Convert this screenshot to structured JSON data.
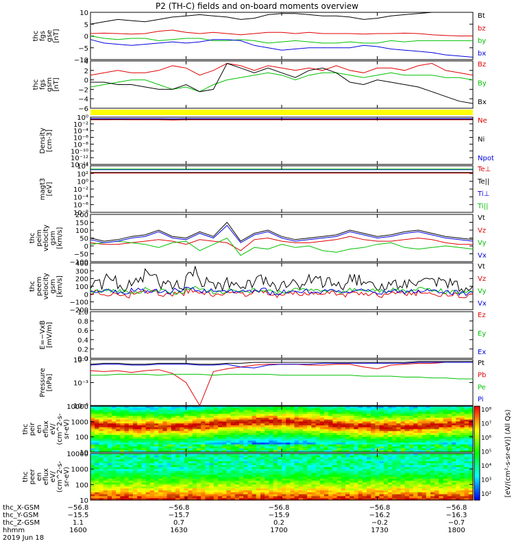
{
  "title": "P2 (TH-C) fields and on-board moments overview",
  "date": "2019 Jun 18",
  "chart_data": [
    {
      "type": "line",
      "ylabel": [
        "thc",
        "fgs",
        "gse",
        "[nT]"
      ],
      "ylim": [
        -10,
        10
      ],
      "yticks": [
        "10",
        "5",
        "0",
        "−5",
        "−10"
      ],
      "series": [
        {
          "name": "Bt",
          "color": "#000000",
          "values": [
            5,
            6,
            7,
            6.5,
            6,
            7,
            8,
            8.5,
            9,
            8.5,
            8,
            7,
            7.5,
            9,
            9.5,
            9.5,
            9,
            8.5,
            8.5,
            8,
            7,
            7.5,
            8.5,
            9,
            9.5,
            10,
            10,
            10,
            10
          ]
        },
        {
          "name": "bz",
          "color": "#e00000",
          "values": [
            1,
            1.2,
            1,
            0.8,
            1,
            2,
            2.5,
            1.5,
            1,
            1.5,
            1,
            0.5,
            1,
            1.5,
            1.5,
            1,
            1.5,
            1,
            1,
            1,
            0.8,
            1,
            1,
            1.2,
            1,
            0.5,
            0.2,
            0,
            0
          ]
        },
        {
          "name": "by",
          "color": "#00c000",
          "values": [
            0,
            -1,
            -1.5,
            -1,
            -1,
            -2,
            -1.5,
            -1,
            -1,
            -2,
            -2,
            -1.5,
            -2,
            -3,
            -2.5,
            -2,
            -2.5,
            -3,
            -3,
            -2.5,
            -3,
            -3,
            -2,
            -2.5,
            -2,
            -2,
            -2,
            -2,
            -2
          ]
        },
        {
          "name": "bx",
          "color": "#0000e0",
          "values": [
            -1.5,
            -3,
            -3.5,
            -4,
            -3.5,
            -3,
            -2.5,
            -3,
            -2.5,
            -1.5,
            -1.5,
            -2,
            -4,
            -5,
            -6,
            -5.5,
            -5,
            -5,
            -5,
            -5,
            -4,
            -4.5,
            -5.5,
            -6,
            -6.5,
            -7,
            -8,
            -8.5,
            -9
          ]
        }
      ]
    },
    {
      "type": "line",
      "ylabel": [
        "thc",
        "fgs",
        "gsm",
        "[nT]"
      ],
      "ylim": [
        -6,
        4
      ],
      "yticks": [
        "4",
        "2",
        "0",
        "−2",
        "−4",
        "−6"
      ],
      "series": [
        {
          "name": "Bz",
          "color": "#e00000",
          "values": [
            1,
            1.5,
            2,
            1.5,
            1.5,
            2,
            3,
            2.5,
            1,
            2,
            3.5,
            3,
            2,
            3,
            2.5,
            2,
            2.5,
            2,
            3,
            2,
            1.5,
            2.5,
            2.5,
            2,
            3,
            3.5,
            2,
            1.5,
            1
          ]
        },
        {
          "name": "By",
          "color": "#00c000",
          "values": [
            -1.5,
            -1,
            -0.5,
            0,
            0,
            -1,
            -2,
            -1.5,
            -2.5,
            -1,
            0,
            0.5,
            1,
            1.5,
            1,
            0,
            1,
            1.5,
            1.5,
            1,
            0.5,
            1,
            1.5,
            1,
            1,
            1,
            0.5,
            0.5,
            0
          ]
        },
        {
          "name": "Bx",
          "color": "#000000",
          "values": [
            -0.5,
            -0.5,
            -1,
            -1,
            -1.5,
            -2,
            -2,
            -1,
            -2.5,
            -2,
            3.5,
            2.5,
            1.5,
            2.5,
            1.5,
            0.5,
            2,
            2.5,
            1.5,
            -0.5,
            -1,
            0,
            -0.5,
            -1,
            -1.5,
            -2.5,
            -3.5,
            -4.5,
            -5
          ]
        }
      ]
    },
    {
      "type": "line",
      "ylabel": [
        "Density",
        "[cm-3]"
      ],
      "ylog": true,
      "ylim": [
        -15,
        1
      ],
      "yticks": [
        "10⁰",
        "10⁻²",
        "10⁻⁴",
        "10⁻⁶",
        "10⁻⁸",
        "10⁻¹⁰",
        "10⁻¹²",
        "10⁻¹⁴"
      ],
      "series": [
        {
          "name": "Ne",
          "color": "#e00000",
          "values": [
            0.1,
            0.1,
            0.15,
            0.1,
            0.1,
            0.1,
            0,
            0.1,
            0.1,
            0.1,
            0.1,
            0.1,
            0.1,
            0.1,
            0.1,
            0.1,
            0.1,
            0.1,
            0.1,
            0.1,
            0.1,
            0.1,
            0.1,
            0.1,
            0.1,
            0.1,
            0.1,
            0.1,
            0.1
          ]
        },
        {
          "name": "Ni",
          "color": "#000000",
          "values": [
            0.3,
            0.3,
            0.3,
            0.3,
            0.3,
            0.3,
            0.2,
            0.3,
            0.3,
            0.3,
            0.3,
            0.3,
            0.3,
            0.3,
            0.3,
            0.3,
            0.3,
            0.3,
            0.3,
            0.3,
            0.3,
            0.3,
            0.3,
            0.3,
            0.3,
            0.3,
            0.3,
            0.3,
            0.3
          ]
        },
        {
          "name": "Npot",
          "color": "#0000e0",
          "values": [
            0.5,
            0.5,
            0.5,
            0.5,
            0.5,
            0.5,
            0.5,
            0.5,
            0.5,
            0.5,
            0.5,
            0.5,
            0.5,
            0.5,
            0.5,
            0.5,
            0.5,
            0.5,
            0.5,
            0.5,
            0.5,
            0.5,
            0.5,
            0.5,
            0.5,
            0.5,
            0.5,
            0.5,
            0.5
          ]
        }
      ]
    },
    {
      "type": "line",
      "ylabel": [
        "magt3",
        "[eV]"
      ],
      "ylog": true,
      "ylim": [
        -9,
        5
      ],
      "yticks": [
        "10⁴",
        "10²",
        "10⁰",
        "10⁻²",
        "10⁻⁴",
        "10⁻⁶",
        "10⁻⁸"
      ],
      "series": [
        {
          "name": "Te⊥",
          "color": "#e00000",
          "values": [
            2.8,
            2.8,
            2.8,
            2.8,
            2.8,
            2.8,
            2.8,
            2.8,
            2.8,
            2.8,
            2.8,
            2.8,
            2.8,
            2.8,
            2.8,
            2.8,
            2.8,
            2.8,
            2.8,
            2.8,
            2.8,
            2.8,
            2.8,
            2.8,
            2.8,
            2.8,
            2.8,
            2.8,
            2.8
          ]
        },
        {
          "name": "Te||",
          "color": "#000000",
          "values": [
            3.0,
            3.0,
            3.0,
            3.0,
            3.0,
            3.0,
            3.0,
            3.0,
            3.0,
            3.0,
            3.0,
            3.0,
            3.0,
            3.0,
            3.0,
            3.0,
            3.0,
            3.0,
            3.0,
            3.0,
            3.0,
            3.0,
            3.0,
            3.0,
            3.0,
            3.0,
            3.0,
            3.0,
            3.0
          ]
        },
        {
          "name": "Ti⊥",
          "color": "#0000e0",
          "values": [
            3.8,
            3.8,
            3.8,
            3.8,
            3.8,
            3.8,
            3.8,
            3.8,
            3.8,
            3.8,
            3.8,
            3.8,
            3.8,
            3.8,
            3.8,
            3.8,
            3.8,
            3.8,
            3.8,
            3.8,
            3.8,
            3.8,
            3.8,
            3.8,
            3.8,
            3.8,
            3.8,
            3.8,
            3.8
          ]
        },
        {
          "name": "Ti||",
          "color": "#00c000",
          "values": [
            4.0,
            4.0,
            4.0,
            4.0,
            4.0,
            4.0,
            4.0,
            4.0,
            4.0,
            4.0,
            4.0,
            4.0,
            4.0,
            4.0,
            4.0,
            4.0,
            4.0,
            4.0,
            4.0,
            4.0,
            4.0,
            4.0,
            4.0,
            4.0,
            4.0,
            4.0,
            4.0,
            4.0,
            4.0
          ]
        }
      ]
    },
    {
      "type": "line",
      "ylabel": [
        "thc",
        "peim",
        "velocity",
        "gsm",
        "[km/s]"
      ],
      "ylim": [
        -100,
        200
      ],
      "yticks": [
        "200",
        "150",
        "100",
        "50",
        "0",
        "−50",
        "−100"
      ],
      "series": [
        {
          "name": "Vt",
          "color": "#000000",
          "values": [
            50,
            30,
            40,
            60,
            70,
            100,
            60,
            50,
            90,
            60,
            150,
            30,
            80,
            100,
            60,
            40,
            50,
            60,
            70,
            100,
            80,
            60,
            70,
            90,
            100,
            80,
            60,
            50,
            40
          ]
        },
        {
          "name": "Vz",
          "color": "#e00000",
          "values": [
            20,
            10,
            10,
            20,
            30,
            40,
            30,
            10,
            40,
            30,
            20,
            -30,
            40,
            50,
            30,
            20,
            20,
            30,
            40,
            60,
            40,
            30,
            30,
            40,
            50,
            40,
            20,
            10,
            10
          ]
        },
        {
          "name": "Vy",
          "color": "#00c000",
          "values": [
            10,
            20,
            30,
            20,
            10,
            -10,
            20,
            30,
            -30,
            10,
            50,
            -60,
            -10,
            -20,
            10,
            -10,
            0,
            -30,
            -40,
            -20,
            -10,
            10,
            20,
            -10,
            -20,
            -10,
            0,
            -10,
            -20
          ]
        },
        {
          "name": "Vx",
          "color": "#0000e0",
          "values": [
            40,
            20,
            30,
            50,
            60,
            90,
            50,
            40,
            80,
            50,
            130,
            20,
            70,
            90,
            50,
            30,
            40,
            50,
            60,
            90,
            70,
            50,
            60,
            80,
            90,
            70,
            50,
            40,
            30
          ]
        }
      ]
    },
    {
      "type": "line",
      "ylabel": [
        "thc",
        "peem",
        "velocity",
        "gsm",
        "[km/s]"
      ],
      "ylim": [
        -200,
        400
      ],
      "yticks": [
        "400",
        "300",
        "200",
        "100",
        "0",
        "−100",
        "−200"
      ],
      "series": [
        {
          "name": "Vt",
          "color": "#000000",
          "values": [
            120,
            180,
            100,
            150,
            250,
            130,
            100,
            300,
            160,
            120,
            150,
            130,
            180,
            100,
            120,
            140,
            200,
            150,
            120,
            180,
            140,
            110,
            130,
            150,
            160,
            140,
            120,
            100,
            110
          ]
        },
        {
          "name": "Vz",
          "color": "#e00000",
          "values": [
            20,
            0,
            -20,
            10,
            30,
            -10,
            0,
            40,
            10,
            -10,
            10,
            0,
            20,
            -20,
            0,
            10,
            0,
            20,
            -10,
            10,
            0,
            -20,
            10,
            0,
            20,
            -10,
            0,
            -20,
            0
          ]
        },
        {
          "name": "Vy",
          "color": "#00c000",
          "values": [
            40,
            50,
            30,
            20,
            60,
            40,
            20,
            80,
            50,
            30,
            50,
            40,
            60,
            30,
            40,
            50,
            60,
            40,
            30,
            50,
            40,
            30,
            50,
            40,
            60,
            40,
            30,
            20,
            30
          ]
        },
        {
          "name": "Vx",
          "color": "#0000e0",
          "values": [
            30,
            40,
            20,
            50,
            40,
            30,
            50,
            60,
            40,
            20,
            40,
            30,
            50,
            20,
            30,
            40,
            30,
            50,
            20,
            40,
            30,
            20,
            40,
            30,
            50,
            30,
            20,
            10,
            20
          ]
        }
      ]
    },
    {
      "type": "line",
      "ylabel": [
        "E=−VxB",
        "[mV/m]"
      ],
      "ylim": [
        0,
        1
      ],
      "yticks": [
        "1.0",
        "0.8",
        "0.6",
        "0.4",
        "0.2",
        "0.0"
      ],
      "series": [
        {
          "name": "Ez",
          "color": "#e00000",
          "values": []
        },
        {
          "name": "Ey",
          "color": "#00c000",
          "values": []
        },
        {
          "name": "Ex",
          "color": "#0000e0",
          "values": []
        }
      ]
    },
    {
      "type": "line",
      "ylabel": [
        "Pressure",
        "[nPa]"
      ],
      "ylog": true,
      "ylim": [
        -6,
        -1
      ],
      "yticks": [
        "10⁻¹",
        "10⁻³",
        "10⁻⁵"
      ],
      "series": [
        {
          "name": "Pt",
          "color": "#000000",
          "values": [
            -1.5,
            -1.4,
            -1.4,
            -1.5,
            -1.5,
            -1.4,
            -1.4,
            -1.4,
            -1.5,
            -1.5,
            -1.4,
            -1.4,
            -1.3,
            -1.3,
            -1.3,
            -1.3,
            -1.3,
            -1.3,
            -1.3,
            -1.3,
            -1.3,
            -1.3,
            -1.3,
            -1.3,
            -1.2,
            -1.2,
            -1.2,
            -1.2,
            -1.2
          ]
        },
        {
          "name": "Pb",
          "color": "#e00000",
          "values": [
            -2.2,
            -2.3,
            -2.2,
            -2.4,
            -2.2,
            -2.1,
            -2.5,
            -3.5,
            -6,
            -2.3,
            -2.0,
            -1.8,
            -1.6,
            -1.5,
            -1.5,
            -1.5,
            -1.6,
            -1.6,
            -1.5,
            -1.5,
            -1.8,
            -2.0,
            -1.6,
            -1.5,
            -1.4,
            -1.4,
            -1.3,
            -1.3,
            -1.3
          ]
        },
        {
          "name": "Pe",
          "color": "#00c000",
          "values": [
            -2.7,
            -2.7,
            -2.6,
            -2.6,
            -2.6,
            -2.7,
            -2.6,
            -2.6,
            -2.6,
            -2.7,
            -2.6,
            -2.6,
            -2.6,
            -2.6,
            -2.7,
            -2.7,
            -2.7,
            -2.7,
            -2.7,
            -2.7,
            -2.8,
            -2.8,
            -2.8,
            -2.9,
            -2.9,
            -3.0,
            -3.0,
            -3.1,
            -3.1
          ]
        },
        {
          "name": "Pi",
          "color": "#0000e0",
          "values": [
            -1.6,
            -1.5,
            -1.5,
            -1.6,
            -1.6,
            -1.5,
            -1.5,
            -1.5,
            -1.6,
            -1.6,
            -1.5,
            -1.8,
            -1.9,
            -1.6,
            -1.5,
            -1.5,
            -1.5,
            -1.4,
            -1.4,
            -1.4,
            -1.4,
            -1.4,
            -1.4,
            -1.4,
            -1.3,
            -1.3,
            -1.3,
            -1.3,
            -1.3
          ]
        }
      ]
    },
    {
      "type": "heatmap",
      "ylabel": [
        "thc",
        "peir",
        "en",
        "eflux",
        "eV/",
        "(cm^2-s-",
        "sr-eV)"
      ],
      "yticks": [
        "10000",
        "1000",
        "100",
        "10"
      ]
    },
    {
      "type": "heatmap",
      "ylabel": [
        "thc",
        "peer",
        "en",
        "eflux",
        "eV/",
        "(cm^2-s-",
        "sr-eV)"
      ],
      "yticks": [
        "10000",
        "1000",
        "100",
        "10"
      ]
    }
  ],
  "colorbar": {
    "label": "[eV/(cm²-s-sr-eV)] (All Qs)",
    "ticks": [
      "10⁸",
      "10⁷",
      "10⁶",
      "10⁵",
      "10⁴",
      "10³",
      "10²"
    ]
  },
  "x_axis": {
    "ticks": [
      "1600",
      "1630",
      "1700",
      "1730",
      "1800"
    ]
  },
  "ephemeris": [
    {
      "label": "thc_X-GSM",
      "values": [
        "−56.8",
        "−56.8",
        "−56.8",
        "−56.8",
        "−56.8"
      ]
    },
    {
      "label": "thc_Y-GSM",
      "values": [
        "−15.5",
        "−15.7",
        "−15.9",
        "−16.2",
        "−16.3"
      ]
    },
    {
      "label": "thc_Z-GSM",
      "values": [
        "1.1",
        "0.7",
        "0.2",
        "−0.2",
        "−0.7"
      ]
    },
    {
      "label": "hhmm",
      "values": [
        "1600",
        "1630",
        "1700",
        "1730",
        "1800"
      ]
    }
  ]
}
